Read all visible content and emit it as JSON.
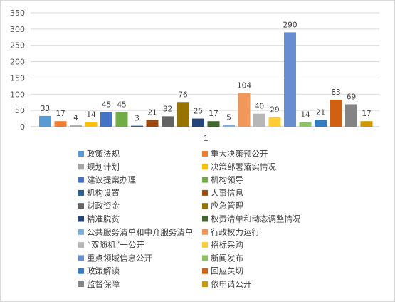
{
  "chart_data": {
    "type": "bar",
    "categories": [
      "1"
    ],
    "ylim": [
      0,
      350
    ],
    "yticks": [
      0,
      50,
      100,
      150,
      200,
      250,
      300,
      350
    ],
    "grid": true,
    "legend_position": "bottom",
    "series": [
      {
        "name": "政策法规",
        "values": [
          33
        ],
        "color": "#5b9bd5"
      },
      {
        "name": "重大决策预公开",
        "values": [
          17
        ],
        "color": "#ed7d31"
      },
      {
        "name": "规划计划",
        "values": [
          4
        ],
        "color": "#a5a5a5"
      },
      {
        "name": "决策部署落实情况",
        "values": [
          14
        ],
        "color": "#ffc000"
      },
      {
        "name": "建议提案办理",
        "values": [
          45
        ],
        "color": "#4472c4"
      },
      {
        "name": "机构领导",
        "values": [
          45
        ],
        "color": "#70ad47"
      },
      {
        "name": "机构设置",
        "values": [
          3
        ],
        "color": "#255e91"
      },
      {
        "name": "人事信息",
        "values": [
          21
        ],
        "color": "#9e480e"
      },
      {
        "name": "财政资金",
        "values": [
          32
        ],
        "color": "#636363"
      },
      {
        "name": "应急管理",
        "values": [
          76
        ],
        "color": "#997300"
      },
      {
        "name": "精准脱贫",
        "values": [
          25
        ],
        "color": "#264478"
      },
      {
        "name": "权责清单和动态调整情况",
        "values": [
          17
        ],
        "color": "#43682b"
      },
      {
        "name": "公共服务清单和中介服务清单",
        "values": [
          5
        ],
        "color": "#7cafdd"
      },
      {
        "name": "行政权力运行",
        "values": [
          104
        ],
        "color": "#f1975a"
      },
      {
        "name": "“双随机”一公开",
        "values": [
          40
        ],
        "color": "#b7b7b7"
      },
      {
        "name": "招标采购",
        "values": [
          29
        ],
        "color": "#ffcd33"
      },
      {
        "name": "重点领域信息公开",
        "values": [
          290
        ],
        "color": "#698ed0"
      },
      {
        "name": "新闻发布",
        "values": [
          14
        ],
        "color": "#8cc168"
      },
      {
        "name": "政策解读",
        "values": [
          21
        ],
        "color": "#327dc2"
      },
      {
        "name": "回应关切",
        "values": [
          83
        ],
        "color": "#d26012"
      },
      {
        "name": "监督保障",
        "values": [
          69
        ],
        "color": "#848484"
      },
      {
        "name": "依申请公开",
        "values": [
          17
        ],
        "color": "#cc9a00"
      }
    ]
  }
}
